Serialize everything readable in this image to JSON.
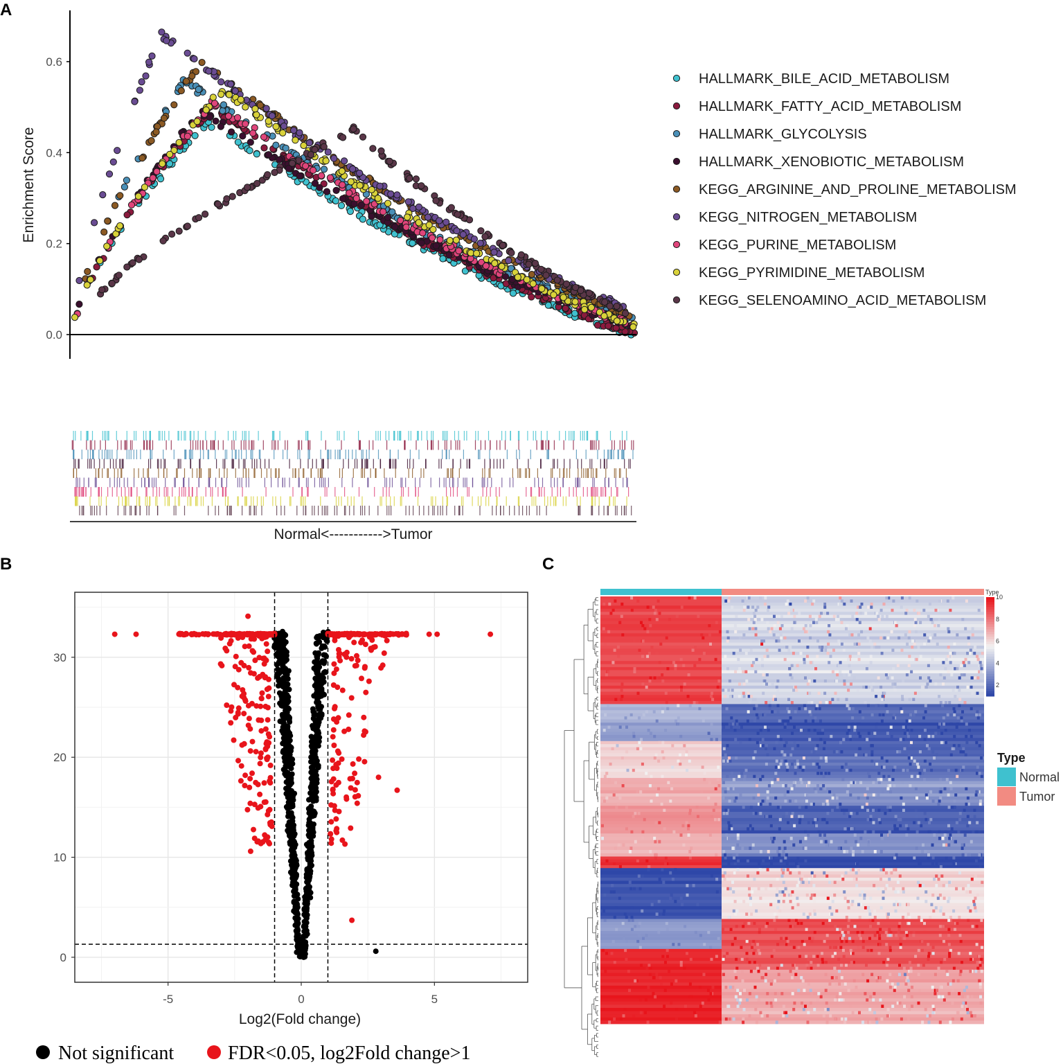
{
  "panels": {
    "a": "A",
    "b": "B",
    "c": "C"
  },
  "chart_data": [
    {
      "type": "scatter",
      "title": "",
      "panel": "A",
      "xlabel": "Normal<----------->Tumor",
      "ylabel": "Enrichment Score",
      "ylim": [
        -0.06,
        0.7
      ],
      "xlim": [
        0,
        1
      ],
      "yticks": [
        0.0,
        0.2,
        0.4,
        0.6
      ],
      "ytick_labels": [
        "0.0",
        "0.2",
        "0.4",
        "0.6"
      ],
      "legend_position": "right",
      "series": [
        {
          "name": "HALLMARK_BILE_ACID_METABOLISM",
          "color": "#3fc1cf",
          "rise_end": 0.15,
          "peak_x": 0.24,
          "peak": 0.47,
          "end": 0.0
        },
        {
          "name": "HALLMARK_FATTY_ACID_METABOLISM",
          "color": "#8b1a3e",
          "rise_end": 0.12,
          "peak_x": 0.25,
          "peak": 0.5,
          "end": 0.0
        },
        {
          "name": "HALLMARK_GLYCOLYSIS",
          "color": "#4a90b8",
          "rise_end": 0.1,
          "peak_x": 0.2,
          "peak": 0.56,
          "end": 0.03
        },
        {
          "name": "HALLMARK_XENOBIOTIC_METABOLISM",
          "color": "#3a0f2e",
          "rise_end": 0.12,
          "peak_x": 0.23,
          "peak": 0.49,
          "end": 0.02
        },
        {
          "name": "KEGG_ARGININE_AND_PROLINE_METABOLISM",
          "color": "#8c5a24",
          "rise_end": 0.05,
          "peak_x": 0.23,
          "peak": 0.6,
          "end": 0.04
        },
        {
          "name": "KEGG_NITROGEN_METABOLISM",
          "color": "#6a4c93",
          "rise_end": 0.05,
          "peak_x": 0.16,
          "peak": 0.66,
          "end": 0.05
        },
        {
          "name": "KEGG_PURINE_METABOLISM",
          "color": "#e0457b",
          "rise_end": 0.08,
          "peak_x": 0.25,
          "peak": 0.51,
          "end": 0.02
        },
        {
          "name": "KEGG_PYRIMIDINE_METABOLISM",
          "color": "#d9d23a",
          "rise_end": 0.12,
          "peak_x": 0.27,
          "peak": 0.54,
          "end": 0.02
        },
        {
          "name": "KEGG_SELENOAMINO_ACID_METABOLISM",
          "color": "#5a3648",
          "rise_end": 0.06,
          "peak_x": 0.5,
          "peak": 0.45,
          "end": 0.04
        }
      ]
    },
    {
      "type": "scatter",
      "title": "",
      "panel": "B",
      "xlabel": "Log2(Fold change)",
      "ylabel": "",
      "xlim": [
        -8.5,
        8.5
      ],
      "ylim": [
        -2.5,
        36.5
      ],
      "xticks": [
        -5,
        0,
        5
      ],
      "xtick_labels": [
        "-5",
        "0",
        "5"
      ],
      "yticks": [
        0,
        10,
        20,
        30
      ],
      "ytick_labels": [
        "0",
        "10",
        "20",
        "30"
      ],
      "vlines": [
        -1,
        1
      ],
      "hline": 1.3,
      "cap_y": 32.3,
      "series": [
        {
          "name": "Not significant",
          "color": "#000000"
        },
        {
          "name": "FDR<0.05, log2Fold change>1",
          "color": "#e8141b"
        }
      ],
      "highlights": [
        [
          -7.0,
          32.3
        ],
        [
          -6.2,
          32.3
        ],
        [
          7.1,
          32.3
        ],
        [
          5.1,
          32.3
        ],
        [
          4.8,
          32.3
        ],
        [
          -2.0,
          34.1
        ],
        [
          3.6,
          16.7
        ],
        [
          1.9,
          3.7
        ],
        [
          2.8,
          0.6
        ],
        [
          -1.9,
          10.6
        ],
        [
          2.9,
          18.0
        ],
        [
          2.1,
          15.4
        ]
      ]
    },
    {
      "type": "heatmap",
      "title": "",
      "panel": "C",
      "annotation_title": "Type",
      "groups": [
        "Normal",
        "Tumor"
      ],
      "group_colors": [
        "#3fc1cf",
        "#f28b82"
      ],
      "colorbar_title": "Type",
      "colorbar_ticks": [
        10,
        8,
        6,
        4,
        2
      ],
      "colorbar_range": [
        1,
        10
      ],
      "colors": {
        "low": "#2e47a8",
        "mid": "#f2f2f2",
        "high": "#e8141b"
      },
      "row_blocks": [
        {
          "fraction": 0.233,
          "normal": 9.0,
          "tumor": 4.8
        },
        {
          "fraction": 0.04,
          "normal": 4.0,
          "tumor": 1.7
        },
        {
          "fraction": 0.04,
          "normal": 3.3,
          "tumor": 1.4
        },
        {
          "fraction": 0.08,
          "normal": 6.0,
          "tumor": 2.0
        },
        {
          "fraction": 0.06,
          "normal": 7.0,
          "tumor": 3.2
        },
        {
          "fraction": 0.06,
          "normal": 7.5,
          "tumor": 1.6
        },
        {
          "fraction": 0.05,
          "normal": 6.8,
          "tumor": 2.8
        },
        {
          "fraction": 0.025,
          "normal": 9.3,
          "tumor": 1.2
        },
        {
          "fraction": 0.11,
          "normal": 1.3,
          "tumor": 5.8
        },
        {
          "fraction": 0.065,
          "normal": 3.2,
          "tumor": 8.8
        },
        {
          "fraction": 0.045,
          "normal": 9.8,
          "tumor": 8.6
        },
        {
          "fraction": 0.117,
          "normal": 9.7,
          "tumor": 7.0
        }
      ]
    }
  ]
}
